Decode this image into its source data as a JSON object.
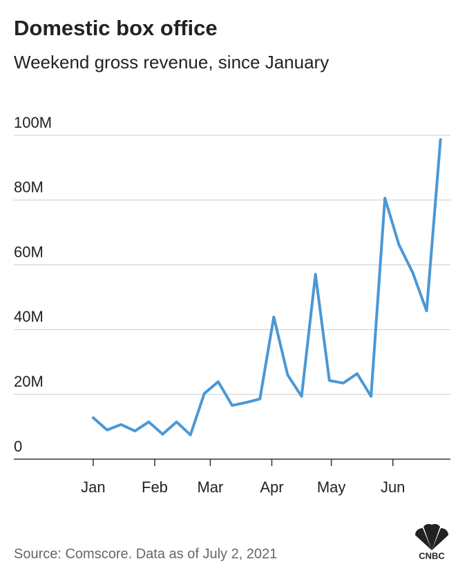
{
  "chart_data": {
    "type": "line",
    "title": "Domestic box office",
    "subtitle": "Weekend gross revenue, since January",
    "source": "Source: Comscore. Data as of July 2, 2021",
    "logo": "CNBC",
    "x": [
      0,
      7,
      14,
      21,
      28,
      35,
      42,
      49,
      56,
      63,
      70,
      77,
      84,
      91,
      98,
      105,
      112,
      119,
      126,
      133,
      140,
      147,
      154,
      161,
      168,
      175
    ],
    "series": [
      {
        "name": "Weekend gross",
        "color": "#4a98d6",
        "values": [
          12.8,
          9,
          10.7,
          8.7,
          11.5,
          7.7,
          11.5,
          7.5,
          20.3,
          23.9,
          16.6,
          17.5,
          18.6,
          43.9,
          26,
          19.4,
          57.1,
          24.3,
          23.5,
          26.4,
          19.4,
          80.6,
          66.3,
          57.6,
          45.8,
          98.7
        ]
      }
    ],
    "xlim": [
      -40,
      180
    ],
    "xticks": [
      {
        "value": 0,
        "label": "Jan"
      },
      {
        "value": 31,
        "label": "Feb"
      },
      {
        "value": 59,
        "label": "Mar"
      },
      {
        "value": 90,
        "label": "Apr"
      },
      {
        "value": 120,
        "label": "May"
      },
      {
        "value": 151,
        "label": "Jun"
      }
    ],
    "ylim": [
      0,
      100
    ],
    "yticks": [
      0,
      {
        "value": 20,
        "label": "20M"
      },
      {
        "value": 40,
        "label": "40M"
      },
      {
        "value": 60,
        "label": "60M"
      },
      {
        "value": 80,
        "label": "80M"
      },
      {
        "value": 100,
        "label": "100M"
      }
    ],
    "grid": true
  }
}
